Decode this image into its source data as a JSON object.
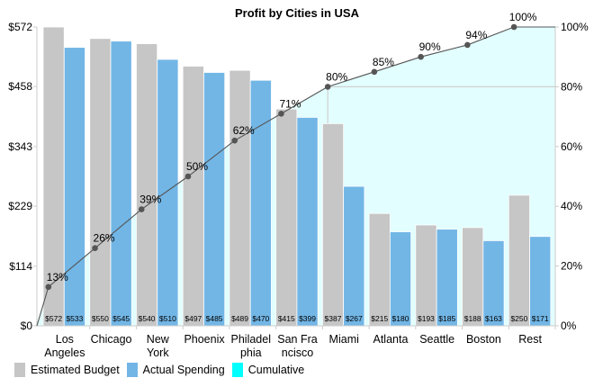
{
  "chart_data": {
    "type": "bar",
    "title": "Profit by Cities in USA",
    "xlabel": "",
    "ylabel": "",
    "categories": [
      [
        "Los",
        "Angeles"
      ],
      [
        "Chicago"
      ],
      [
        "New",
        "York"
      ],
      [
        "Phoenix"
      ],
      [
        "Philadel",
        "phia"
      ],
      [
        "San Fra",
        "ncisco"
      ],
      [
        "Miami"
      ],
      [
        "Atlanta"
      ],
      [
        "Seattle"
      ],
      [
        "Boston"
      ],
      [
        "Rest"
      ]
    ],
    "series": [
      {
        "name": "Estimated Budget",
        "color": "#c6c6c6",
        "values": [
          572,
          550,
          540,
          497,
          489,
          415,
          387,
          215,
          193,
          188,
          250
        ],
        "labels": [
          "$572",
          "$550",
          "$540",
          "$497",
          "$489",
          "$415",
          "$387",
          "$215",
          "$193",
          "$188",
          "$250"
        ]
      },
      {
        "name": "Actual Spending",
        "color": "#72b6e6",
        "values": [
          533,
          545,
          510,
          485,
          470,
          399,
          267,
          180,
          185,
          163,
          171
        ],
        "labels": [
          "$533",
          "$545",
          "$510",
          "$485",
          "$470",
          "$399",
          "$267",
          "$180",
          "$185",
          "$163",
          "$171"
        ]
      },
      {
        "name": "Cumulative",
        "color": "#00ffff",
        "fill": "#e2fefe",
        "axis": "right",
        "values": [
          13,
          26,
          39,
          50,
          62,
          71,
          80,
          85,
          90,
          94,
          100
        ],
        "labels": [
          "13%",
          "26%",
          "39%",
          "50%",
          "62%",
          "71%",
          "80%",
          "85%",
          "90%",
          "94%",
          "100%"
        ]
      }
    ],
    "y_left": {
      "ylim": [
        0,
        572
      ],
      "ticks": [
        0,
        114,
        229,
        343,
        458,
        572
      ],
      "tick_labels": [
        "$0",
        "$114",
        "$229",
        "$343",
        "$458",
        "$572"
      ]
    },
    "y_right": {
      "ylim": [
        0,
        100
      ],
      "ticks": [
        0,
        20,
        40,
        60,
        80,
        100
      ],
      "tick_labels": [
        "0%",
        "20%",
        "40%",
        "60%",
        "80%",
        "100%"
      ]
    },
    "reference_line": {
      "value_percent": 80,
      "category_index": 6
    },
    "grid": false,
    "legend": {
      "position": "bottom-left",
      "entries": [
        "Estimated Budget",
        "Actual Spending",
        "Cumulative"
      ]
    }
  }
}
